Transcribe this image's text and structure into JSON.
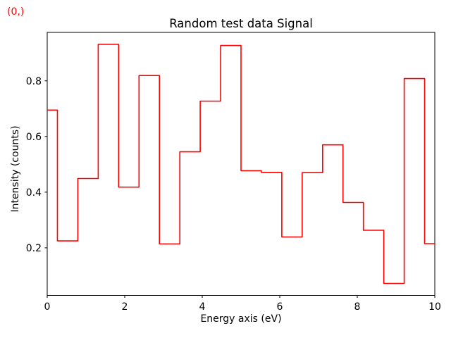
{
  "figure": {
    "annotation": {
      "text": "(0,)",
      "color": "#ff0000"
    },
    "background": "#ffffff"
  },
  "chart_data": {
    "type": "line",
    "drawstyle": "steps-mid",
    "title": "Random test data Signal",
    "xlabel": "Energy axis (eV)",
    "ylabel": "Intensity (counts)",
    "line_color": "#ff0000",
    "axis_color": "#000000",
    "grid": false,
    "legend": null,
    "xlim": [
      0,
      10
    ],
    "ylim": [
      0.029,
      0.974
    ],
    "xticks": {
      "values": [
        0,
        2,
        4,
        6,
        8,
        10
      ],
      "labels": [
        "0",
        "2",
        "4",
        "6",
        "8",
        "10"
      ]
    },
    "yticks": {
      "values": [
        0.2,
        0.4,
        0.6,
        0.8
      ],
      "labels": [
        "0.2",
        "0.4",
        "0.6",
        "0.8"
      ]
    },
    "x": [
      0,
      0.526,
      1.053,
      1.579,
      2.105,
      2.632,
      3.158,
      3.684,
      4.211,
      4.737,
      5.263,
      5.789,
      6.316,
      6.842,
      7.368,
      7.895,
      8.421,
      8.947,
      9.474,
      10
    ],
    "y": [
      0.695,
      0.225,
      0.449,
      0.931,
      0.418,
      0.819,
      0.214,
      0.545,
      0.727,
      0.927,
      0.477,
      0.471,
      0.239,
      0.47,
      0.57,
      0.363,
      0.263,
      0.072,
      0.808,
      0.215
    ]
  }
}
